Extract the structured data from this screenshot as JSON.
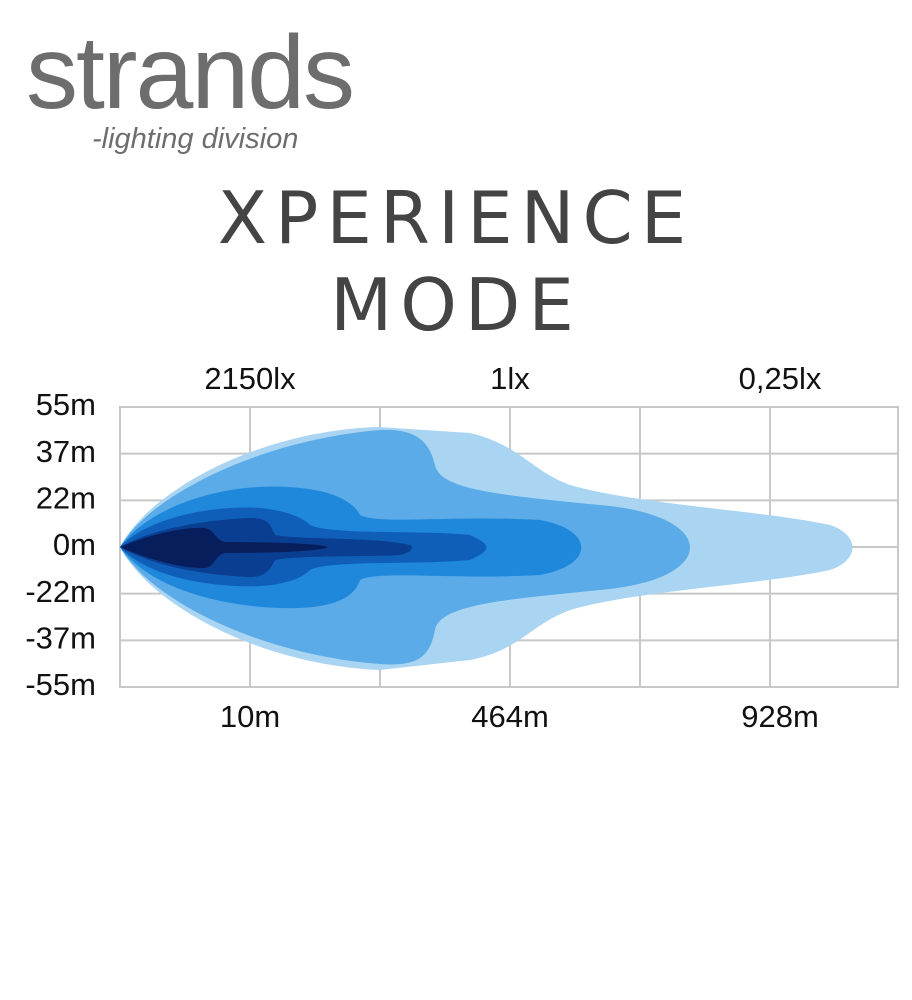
{
  "logo": {
    "brand": "strands",
    "tagline": "-lighting division"
  },
  "title": {
    "line1": "XPERIENCE",
    "line2": "MODE"
  },
  "diagram": {
    "lux_labels": [
      "2150lx",
      "1lx",
      "0,25lx"
    ],
    "y_labels": [
      "55m",
      "37m",
      "22m",
      "0m",
      "-22m",
      "-37m",
      "-55m"
    ],
    "x_labels": [
      "10m",
      "464m",
      "928m"
    ]
  }
}
